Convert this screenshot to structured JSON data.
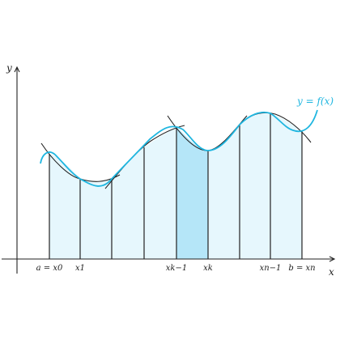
{
  "axes": {
    "x_label": "x",
    "y_label": "y"
  },
  "curve_label": "y = f(x)",
  "ticks": [
    "a = x0",
    "x1",
    "xk−1",
    "xk",
    "xn−1",
    "b = xn"
  ],
  "colors": {
    "curve": "#1fb6e0",
    "strip_fill": "#e6f7fd",
    "highlight_fill": "#b5e6f8",
    "ink": "#222222"
  },
  "highlighted_strip": "xk−1 to xk"
}
